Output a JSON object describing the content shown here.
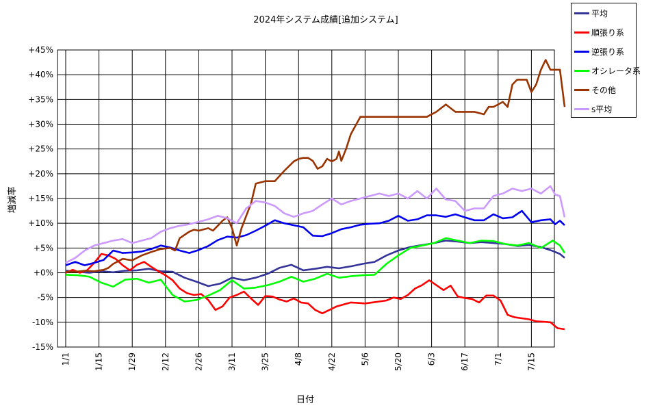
{
  "chart_data": {
    "type": "line",
    "title": "2024年システム成績[追加システム]",
    "xlabel": "日付",
    "ylabel": "増減率",
    "ylim": [
      -15,
      45
    ],
    "y_ticks": [
      "+45%",
      "+40%",
      "+35%",
      "+30%",
      "+25%",
      "+20%",
      "+15%",
      "+10%",
      "+5%",
      "+0%",
      "-5%",
      "-10%",
      "-15%"
    ],
    "xlim": [
      0,
      210
    ],
    "x_ticks": [
      "1/1",
      "1/15",
      "1/29",
      "2/12",
      "2/26",
      "3/11",
      "3/25",
      "4/8",
      "4/22",
      "5/6",
      "5/20",
      "6/3",
      "6/17",
      "7/1",
      "7/15"
    ],
    "grid": true,
    "legend_position": "right",
    "series": [
      {
        "name": "平均",
        "color": "#333399",
        "x": [
          0,
          5,
          10,
          15,
          20,
          25,
          30,
          35,
          40,
          45,
          50,
          55,
          60,
          65,
          70,
          75,
          80,
          85,
          90,
          95,
          100,
          105,
          110,
          115,
          120,
          125,
          130,
          135,
          140,
          145,
          150,
          155,
          160,
          165,
          170,
          175,
          180,
          185,
          190,
          195,
          200,
          205,
          208,
          210
        ],
        "y": [
          0.4,
          0.2,
          0.0,
          0.3,
          0.1,
          0.4,
          0.5,
          0.8,
          0.3,
          0.2,
          -1.0,
          -1.8,
          -2.7,
          -2.2,
          -1.0,
          -1.5,
          -1.0,
          -0.2,
          1.0,
          1.6,
          0.5,
          0.8,
          1.2,
          0.9,
          1.3,
          1.8,
          2.2,
          3.5,
          4.5,
          5.2,
          5.6,
          6.0,
          6.5,
          6.3,
          6.0,
          6.2,
          6.0,
          5.8,
          5.4,
          5.6,
          5.2,
          4.4,
          3.8,
          3.0
        ]
      },
      {
        "name": "順張り系",
        "color": "#ff0000",
        "x": [
          0,
          3,
          6,
          9,
          12,
          15,
          18,
          21,
          24,
          27,
          30,
          33,
          36,
          39,
          42,
          45,
          48,
          51,
          54,
          57,
          60,
          63,
          66,
          69,
          72,
          75,
          78,
          81,
          84,
          87,
          90,
          93,
          96,
          99,
          102,
          105,
          108,
          111,
          114,
          117,
          120,
          123,
          126,
          129,
          132,
          135,
          138,
          141,
          144,
          147,
          150,
          153,
          156,
          159,
          162,
          165,
          168,
          171,
          174,
          177,
          180,
          183,
          186,
          189,
          192,
          195,
          198,
          201,
          204,
          207,
          210
        ],
        "y": [
          0.0,
          0.6,
          0.0,
          0.5,
          2.0,
          3.8,
          3.5,
          2.8,
          1.5,
          0.5,
          1.6,
          2.2,
          1.2,
          0.3,
          -0.5,
          -1.5,
          -3.2,
          -4.1,
          -4.5,
          -4.3,
          -5.5,
          -7.5,
          -6.8,
          -5.0,
          -4.5,
          -3.8,
          -5.2,
          -6.5,
          -4.7,
          -4.8,
          -5.4,
          -5.8,
          -5.2,
          -6.0,
          -6.2,
          -7.5,
          -8.2,
          -7.5,
          -6.8,
          -6.4,
          -6.0,
          -6.1,
          -6.2,
          -6.0,
          -5.8,
          -5.6,
          -5.0,
          -5.3,
          -4.5,
          -3.2,
          -2.5,
          -1.5,
          -2.5,
          -3.5,
          -2.6,
          -4.8,
          -5.1,
          -5.3,
          -6.0,
          -4.6,
          -4.6,
          -5.6,
          -8.5,
          -9.0,
          -9.2,
          -9.4,
          -9.8,
          -9.9,
          -10.0,
          -11.2,
          -11.4
        ]
      },
      {
        "name": "逆張り系",
        "color": "#0000ee",
        "x": [
          0,
          4,
          8,
          12,
          16,
          20,
          24,
          28,
          32,
          36,
          40,
          44,
          48,
          52,
          56,
          60,
          64,
          68,
          72,
          76,
          80,
          84,
          88,
          92,
          96,
          100,
          104,
          108,
          112,
          116,
          120,
          124,
          128,
          132,
          136,
          140,
          144,
          148,
          152,
          156,
          160,
          164,
          168,
          172,
          176,
          180,
          184,
          188,
          192,
          196,
          200,
          204,
          206,
          208,
          210
        ],
        "y": [
          1.5,
          2.2,
          1.5,
          2.0,
          2.6,
          4.5,
          4.0,
          4.1,
          4.3,
          4.8,
          5.5,
          5.1,
          4.5,
          4.0,
          4.6,
          5.4,
          6.6,
          7.3,
          7.1,
          7.6,
          8.5,
          9.5,
          10.6,
          10.0,
          9.6,
          9.2,
          7.5,
          7.4,
          8.0,
          8.8,
          9.2,
          9.7,
          9.9,
          10.0,
          10.5,
          11.5,
          10.5,
          10.8,
          11.6,
          11.6,
          11.3,
          11.8,
          11.2,
          10.6,
          10.6,
          11.8,
          11.0,
          11.2,
          12.5,
          10.2,
          10.6,
          10.8,
          9.8,
          10.5,
          9.6
        ]
      },
      {
        "name": "オシレータ系",
        "color": "#00ff00",
        "x": [
          0,
          5,
          10,
          15,
          20,
          25,
          30,
          35,
          40,
          45,
          50,
          55,
          60,
          65,
          70,
          75,
          80,
          85,
          90,
          95,
          100,
          105,
          110,
          115,
          120,
          125,
          130,
          135,
          140,
          145,
          150,
          155,
          160,
          165,
          170,
          175,
          180,
          185,
          190,
          195,
          200,
          205,
          208,
          210
        ],
        "y": [
          -0.4,
          -0.5,
          -0.8,
          -2.0,
          -2.8,
          -1.4,
          -1.2,
          -2.0,
          -1.4,
          -4.5,
          -5.8,
          -5.5,
          -4.6,
          -3.5,
          -1.5,
          -3.2,
          -3.0,
          -2.5,
          -1.8,
          -0.8,
          -1.8,
          -1.2,
          -0.2,
          -1.0,
          -0.7,
          -0.5,
          -0.4,
          1.8,
          3.5,
          5.0,
          5.5,
          6.0,
          7.0,
          6.5,
          6.0,
          6.5,
          6.4,
          5.8,
          5.5,
          6.0,
          5.0,
          6.5,
          5.5,
          4.0
        ]
      },
      {
        "name": "その他",
        "color": "#993300",
        "x": [
          0,
          4,
          8,
          12,
          16,
          18,
          20,
          24,
          28,
          32,
          36,
          40,
          44,
          46,
          48,
          52,
          54,
          56,
          60,
          62,
          64,
          66,
          68,
          70,
          72,
          74,
          76,
          78,
          80,
          84,
          88,
          92,
          96,
          98,
          100,
          102,
          104,
          106,
          108,
          110,
          112,
          114,
          115,
          116,
          118,
          120,
          124,
          128,
          132,
          136,
          140,
          144,
          148,
          152,
          156,
          160,
          164,
          166,
          168,
          172,
          176,
          178,
          180,
          182,
          184,
          186,
          188,
          190,
          192,
          194,
          196,
          198,
          200,
          202,
          204,
          206,
          208,
          210
        ],
        "y": [
          0.2,
          0.2,
          0.4,
          0.3,
          0.6,
          1.0,
          1.8,
          2.8,
          2.5,
          3.5,
          4.2,
          4.8,
          5.0,
          4.5,
          7.0,
          8.3,
          8.7,
          8.5,
          9.0,
          8.5,
          9.5,
          10.5,
          11.2,
          9.0,
          5.5,
          9.0,
          11.5,
          14.0,
          18.0,
          18.5,
          18.5,
          20.6,
          22.5,
          23.0,
          23.2,
          23.2,
          22.6,
          21.0,
          21.5,
          23.0,
          22.5,
          23.0,
          24.5,
          22.6,
          25.0,
          28.0,
          31.5,
          31.5,
          31.5,
          31.5,
          31.5,
          31.5,
          31.5,
          31.5,
          32.5,
          34.0,
          32.5,
          32.5,
          32.5,
          32.5,
          32.0,
          33.5,
          33.5,
          34.0,
          34.5,
          33.5,
          38.0,
          39.0,
          39.0,
          39.0,
          36.5,
          38.0,
          41.0,
          43.0,
          41.0,
          41.0,
          41.0,
          33.5
        ]
      },
      {
        "name": "s平均",
        "color": "#cc99ff",
        "x": [
          0,
          4,
          8,
          12,
          16,
          20,
          24,
          28,
          32,
          36,
          40,
          44,
          48,
          52,
          56,
          60,
          64,
          68,
          72,
          76,
          80,
          84,
          88,
          92,
          96,
          100,
          104,
          108,
          112,
          116,
          120,
          124,
          128,
          132,
          136,
          140,
          144,
          148,
          152,
          156,
          160,
          164,
          168,
          172,
          176,
          180,
          184,
          188,
          192,
          196,
          200,
          204,
          206,
          208,
          210
        ],
        "y": [
          2.0,
          3.0,
          4.5,
          5.5,
          6.0,
          6.5,
          6.8,
          6.0,
          6.5,
          7.0,
          8.3,
          9.0,
          9.5,
          9.8,
          10.3,
          10.8,
          11.5,
          11.0,
          10.0,
          13.0,
          14.5,
          14.2,
          13.5,
          12.0,
          11.3,
          12.0,
          12.5,
          13.8,
          15.0,
          13.8,
          14.5,
          15.0,
          15.5,
          16.0,
          15.5,
          16.0,
          15.0,
          16.5,
          15.0,
          17.0,
          14.8,
          14.5,
          12.5,
          13.0,
          13.0,
          15.5,
          16.0,
          17.0,
          16.5,
          17.0,
          16.0,
          17.5,
          15.8,
          15.5,
          11.2
        ]
      }
    ]
  }
}
